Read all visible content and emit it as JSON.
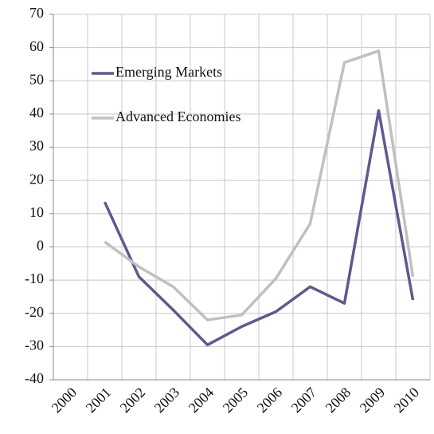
{
  "chart_data": {
    "type": "line",
    "categories": [
      "2000",
      "2001",
      "2002",
      "2003",
      "2004",
      "2005",
      "2006",
      "2007",
      "2008",
      "2009",
      "2010"
    ],
    "series": [
      {
        "name": "Emerging Markets",
        "color": "#5c5a8e",
        "values": [
          null,
          13.5,
          -9,
          -19,
          -29.5,
          -24,
          -19.5,
          -12,
          -17,
          41,
          -16
        ]
      },
      {
        "name": "Advanced Economies",
        "color": "#c0c0c0",
        "values": [
          null,
          1.5,
          -6,
          -12,
          -22,
          -20.5,
          -9.5,
          7,
          55.5,
          59,
          -9
        ]
      }
    ],
    "ylim": [
      -40,
      70
    ],
    "yticks": [
      -40,
      -30,
      -20,
      -10,
      0,
      10,
      20,
      30,
      40,
      50,
      60,
      70
    ],
    "grid": true,
    "legend": "upper left"
  }
}
